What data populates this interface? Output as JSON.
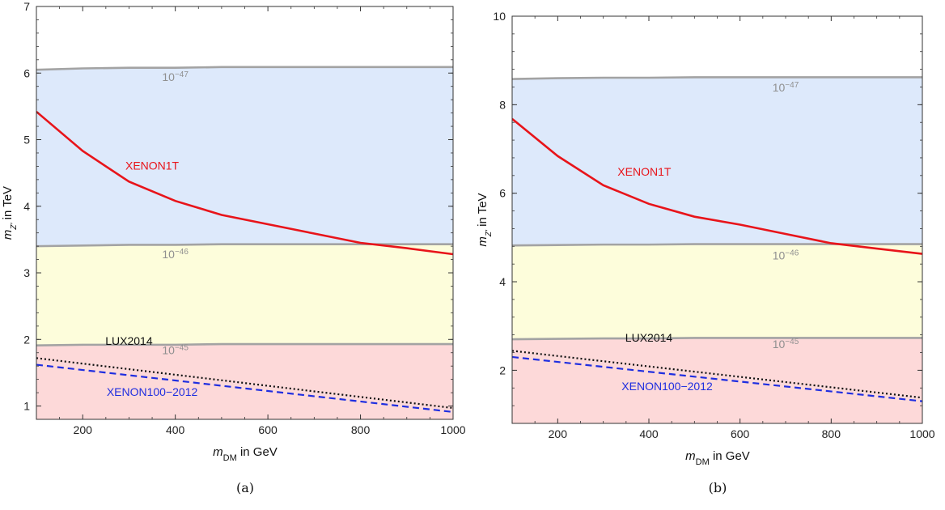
{
  "chart_data": [
    {
      "type": "area",
      "caption": "(a)",
      "xlabel": "m_DM in GeV",
      "ylabel": "m_Z' in TeV",
      "xlim": [
        100,
        1000
      ],
      "ylim": [
        0.8,
        7
      ],
      "xticks": [
        200,
        400,
        600,
        800,
        1000
      ],
      "yticks": [
        1,
        2,
        3,
        4,
        5,
        6,
        7
      ],
      "bands": [
        {
          "label": "10^-45",
          "x": [
            100,
            200,
            300,
            400,
            500,
            600,
            700,
            800,
            900,
            1000
          ],
          "lower": [
            0.8,
            0.8,
            0.8,
            0.8,
            0.8,
            0.8,
            0.8,
            0.8,
            0.8,
            0.8
          ],
          "upper": [
            1.91,
            1.92,
            1.92,
            1.92,
            1.93,
            1.93,
            1.93,
            1.93,
            1.93,
            1.93
          ],
          "fill": "#fdd9d9",
          "label_pos": [
            400,
            1.78
          ]
        },
        {
          "label": "10^-46",
          "x": [
            100,
            200,
            300,
            400,
            500,
            600,
            700,
            800,
            900,
            1000
          ],
          "lower": [
            1.91,
            1.92,
            1.92,
            1.92,
            1.93,
            1.93,
            1.93,
            1.93,
            1.93,
            1.93
          ],
          "upper": [
            3.4,
            3.41,
            3.42,
            3.42,
            3.43,
            3.43,
            3.43,
            3.43,
            3.43,
            3.43
          ],
          "fill": "#fdfddb",
          "label_pos": [
            400,
            3.22
          ]
        },
        {
          "label": "10^-47",
          "x": [
            100,
            200,
            300,
            400,
            500,
            600,
            700,
            800,
            900,
            1000
          ],
          "lower": [
            3.4,
            3.41,
            3.42,
            3.42,
            3.43,
            3.43,
            3.43,
            3.43,
            3.43,
            3.43
          ],
          "upper": [
            6.05,
            6.07,
            6.08,
            6.08,
            6.09,
            6.09,
            6.09,
            6.09,
            6.09,
            6.09
          ],
          "fill": "#dde9fb",
          "label_pos": [
            400,
            5.88
          ]
        }
      ],
      "series": [
        {
          "name": "XENON1T",
          "x": [
            100,
            200,
            300,
            400,
            500,
            600,
            700,
            800,
            900,
            1000
          ],
          "values": [
            5.42,
            4.83,
            4.37,
            4.08,
            3.87,
            3.73,
            3.59,
            3.45,
            3.37,
            3.28
          ],
          "color": "#e8141a",
          "dash": "solid",
          "label_pos": [
            350,
            4.55
          ]
        },
        {
          "name": "LUX2014",
          "x": [
            100,
            1000
          ],
          "values": [
            1.72,
            0.97
          ],
          "color": "#111111",
          "dash": "dotted",
          "label_pos": [
            300,
            1.92
          ]
        },
        {
          "name": "XENON100-2012",
          "x": [
            100,
            1000
          ],
          "values": [
            1.62,
            0.91
          ],
          "color": "#1f2ee0",
          "dash": "dashed",
          "label_pos": [
            350,
            1.15
          ]
        }
      ]
    },
    {
      "type": "area",
      "caption": "(b)",
      "xlabel": "m_DM in GeV",
      "ylabel": "m_Z' in TeV",
      "xlim": [
        100,
        1000
      ],
      "ylim": [
        0.8,
        10
      ],
      "xticks": [
        200,
        400,
        600,
        800,
        1000
      ],
      "yticks": [
        2,
        4,
        6,
        8,
        10
      ],
      "bands": [
        {
          "label": "10^-45",
          "x": [
            100,
            200,
            300,
            400,
            500,
            600,
            700,
            800,
            900,
            1000
          ],
          "lower": [
            0.8,
            0.8,
            0.8,
            0.8,
            0.8,
            0.8,
            0.8,
            0.8,
            0.8,
            0.8
          ],
          "upper": [
            2.7,
            2.71,
            2.72,
            2.72,
            2.73,
            2.73,
            2.73,
            2.73,
            2.73,
            2.73
          ],
          "fill": "#fdd9d9",
          "label_pos": [
            700,
            2.5
          ]
        },
        {
          "label": "10^-46",
          "x": [
            100,
            200,
            300,
            400,
            500,
            600,
            700,
            800,
            900,
            1000
          ],
          "lower": [
            2.7,
            2.71,
            2.72,
            2.72,
            2.73,
            2.73,
            2.73,
            2.73,
            2.73,
            2.73
          ],
          "upper": [
            4.82,
            4.83,
            4.84,
            4.84,
            4.85,
            4.85,
            4.85,
            4.85,
            4.85,
            4.85
          ],
          "fill": "#fdfddb",
          "label_pos": [
            700,
            4.5
          ]
        },
        {
          "label": "10^-47",
          "x": [
            100,
            200,
            300,
            400,
            500,
            600,
            700,
            800,
            900,
            1000
          ],
          "lower": [
            4.82,
            4.83,
            4.84,
            4.84,
            4.85,
            4.85,
            4.85,
            4.85,
            4.85,
            4.85
          ],
          "upper": [
            8.58,
            8.6,
            8.61,
            8.61,
            8.62,
            8.62,
            8.62,
            8.62,
            8.62,
            8.62
          ],
          "fill": "#dde9fb",
          "label_pos": [
            700,
            8.3
          ]
        }
      ],
      "series": [
        {
          "name": "XENON1T",
          "x": [
            100,
            200,
            300,
            400,
            500,
            600,
            700,
            800,
            900,
            1000
          ],
          "values": [
            7.68,
            6.84,
            6.18,
            5.76,
            5.47,
            5.29,
            5.08,
            4.87,
            4.75,
            4.63
          ],
          "color": "#e8141a",
          "dash": "solid",
          "label_pos": [
            390,
            6.4
          ]
        },
        {
          "name": "LUX2014",
          "x": [
            100,
            1000
          ],
          "values": [
            2.44,
            1.38
          ],
          "color": "#111111",
          "dash": "dotted",
          "label_pos": [
            400,
            2.65
          ]
        },
        {
          "name": "XENON100-2012",
          "x": [
            100,
            1000
          ],
          "values": [
            2.3,
            1.3
          ],
          "color": "#1f2ee0",
          "dash": "dashed",
          "label_pos": [
            440,
            1.55
          ]
        }
      ]
    }
  ]
}
